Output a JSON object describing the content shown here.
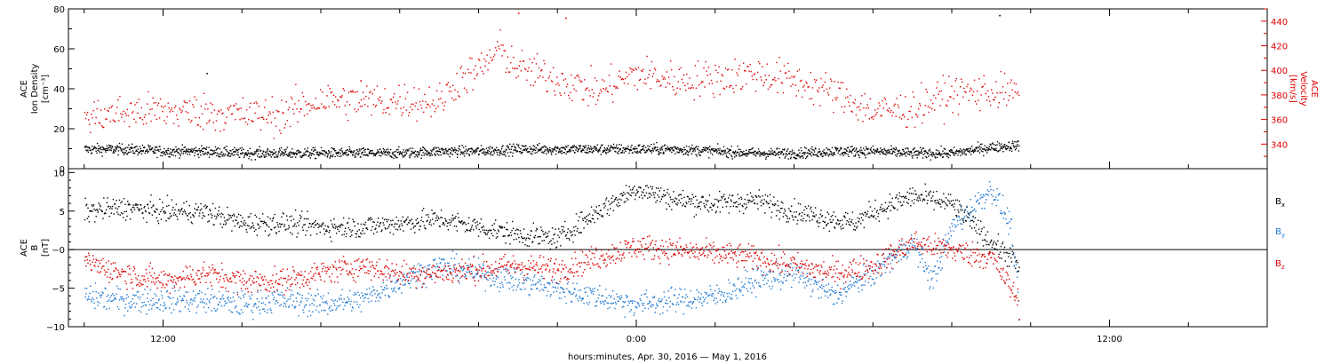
{
  "chart_data": [
    {
      "type": "scatter",
      "panel": "plasma",
      "ylabel_left": [
        "ACE",
        "Ion Density",
        "[cm⁻³]"
      ],
      "ylabel_right": [
        "ACE",
        "Velocity",
        "[km/s]"
      ],
      "ylim_left": [
        0,
        80
      ],
      "ylim_right": [
        320,
        450
      ],
      "yticks_left": [
        {
          "value": 0,
          "label": "0"
        },
        {
          "value": 20,
          "label": "20"
        },
        {
          "value": 40,
          "label": "40"
        },
        {
          "value": 60,
          "label": "60"
        },
        {
          "value": 80,
          "label": "80"
        }
      ],
      "yticks_right": [
        {
          "value": 340,
          "label": "340"
        },
        {
          "value": 360,
          "label": "360"
        },
        {
          "value": 380,
          "label": "380"
        },
        {
          "value": 400,
          "label": "400"
        },
        {
          "value": 420,
          "label": "420"
        },
        {
          "value": 440,
          "label": "440"
        }
      ],
      "series": [
        {
          "axis": "left",
          "color": "#000000",
          "x": [
            -14.0,
            -13.0,
            -12.0,
            -11.0,
            -10.0,
            -9.0,
            -8.0,
            -7.0,
            -6.0,
            -5.0,
            -4.0,
            -3.0,
            -2.0,
            -1.0,
            0.0,
            1.0,
            2.0,
            3.0,
            4.0,
            5.0,
            6.0,
            7.0,
            8.0,
            9.0,
            9.7
          ],
          "y": [
            10,
            10,
            9,
            9,
            8,
            8,
            8,
            8,
            8,
            9,
            9,
            10,
            10,
            10,
            10,
            10,
            9,
            8,
            8,
            9,
            9,
            8,
            8,
            11,
            12
          ]
        },
        {
          "axis": "right",
          "color": "#dd0000",
          "x": [
            -14.0,
            -13.0,
            -12.0,
            -11.0,
            -10.0,
            -9.0,
            -8.0,
            -7.0,
            -6.0,
            -5.0,
            -4.5,
            -4.0,
            -3.5,
            -3.0,
            -2.0,
            -1.0,
            0.0,
            1.0,
            2.0,
            3.0,
            4.0,
            5.0,
            6.0,
            7.0,
            8.0,
            9.0,
            9.7
          ],
          "y": [
            362,
            366,
            367,
            367,
            364,
            364,
            377,
            375,
            376,
            375,
            393,
            400,
            418,
            402,
            393,
            383,
            398,
            392,
            394,
            398,
            392,
            382,
            367,
            369,
            382,
            383,
            382
          ]
        }
      ]
    },
    {
      "type": "scatter",
      "panel": "field",
      "ylabel_left": [
        "ACE",
        "B",
        "[nT]"
      ],
      "ylim": [
        -10,
        10.5
      ],
      "yticks": [
        {
          "value": -10,
          "label": "−10"
        },
        {
          "value": -5,
          "label": "−5"
        },
        {
          "value": 0,
          "label": "−0"
        },
        {
          "value": 5,
          "label": "5"
        },
        {
          "value": 10,
          "label": "10"
        }
      ],
      "zero_line": true,
      "legend": [
        {
          "label": "B",
          "sub": "x",
          "color": "#000000"
        },
        {
          "label": "B",
          "sub": "y",
          "color": "#1e78d0"
        },
        {
          "label": "B",
          "sub": "z",
          "color": "#dd0000"
        }
      ],
      "series": [
        {
          "color": "#000000",
          "x": [
            -14.0,
            -13.0,
            -12.0,
            -11.0,
            -10.0,
            -9.0,
            -8.0,
            -7.0,
            -6.0,
            -5.0,
            -4.0,
            -3.0,
            -2.0,
            -1.0,
            0.0,
            1.0,
            2.0,
            3.0,
            4.0,
            5.0,
            5.5,
            6.0,
            7.0,
            8.0,
            9.0,
            9.5,
            9.7
          ],
          "y": [
            5,
            5.5,
            5,
            5,
            3.5,
            3.5,
            3,
            3,
            3.5,
            4,
            3,
            2,
            1.5,
            5,
            8,
            6.5,
            6,
            6.5,
            5,
            4,
            3.5,
            5,
            7,
            6,
            1,
            -1,
            -2.5
          ]
        },
        {
          "color": "#1e78d0",
          "x": [
            -14.0,
            -13.0,
            -12.0,
            -11.0,
            -10.0,
            -9.0,
            -8.0,
            -7.0,
            -6.0,
            -5.0,
            -4.0,
            -3.0,
            -2.0,
            -1.0,
            0.0,
            1.0,
            2.0,
            3.0,
            4.0,
            5.0,
            6.0,
            7.0,
            7.5,
            8.0,
            9.0,
            9.5,
            9.7
          ],
          "y": [
            -6,
            -6.5,
            -6.5,
            -6.5,
            -7,
            -6.5,
            -7,
            -6.5,
            -4,
            -2,
            -3,
            -4,
            -5,
            -6,
            -7,
            -6.5,
            -6,
            -4,
            -3,
            -6,
            -3,
            1,
            -4,
            3,
            8,
            3,
            -8
          ]
        },
        {
          "color": "#dd0000",
          "x": [
            -14.0,
            -13.0,
            -12.0,
            -11.0,
            -10.0,
            -9.0,
            -8.0,
            -7.0,
            -6.0,
            -5.0,
            -4.0,
            -3.0,
            -2.0,
            -1.0,
            0.0,
            1.0,
            2.0,
            3.0,
            4.0,
            5.0,
            6.0,
            7.0,
            8.0,
            9.0,
            9.5,
            9.7
          ],
          "y": [
            -1.5,
            -3,
            -4,
            -3,
            -4,
            -4,
            -3,
            -2,
            -3,
            -3,
            -2.5,
            -2,
            -2.5,
            -1,
            0.5,
            0,
            -0.5,
            -1,
            -2,
            -3,
            -2,
            1,
            0,
            -1,
            -5,
            -7
          ]
        }
      ]
    }
  ],
  "x_axis": {
    "label": "hours:minutes, Apr. 30, 2016 — May  1, 2016",
    "range": [
      -14.4,
      16.0
    ],
    "labeled_ticks": [
      {
        "value": -12,
        "label": "12:00"
      },
      {
        "value": 0,
        "label": "0:00"
      },
      {
        "value": 12,
        "label": "12:00"
      }
    ],
    "tick_interval_hours": 2
  },
  "sparse_points": [
    {
      "panel": 0,
      "axis": "left",
      "x": -10.9,
      "y": 48
    },
    {
      "panel": 0,
      "axis": "left",
      "x": 9.2,
      "y": 77
    },
    {
      "panel": 0,
      "axis": "right",
      "x": -3.0,
      "y": 447
    },
    {
      "panel": 0,
      "axis": "right",
      "x": -1.8,
      "y": 443
    },
    {
      "panel": 0,
      "axis": "right",
      "x": -7.0,
      "y": 392
    }
  ]
}
